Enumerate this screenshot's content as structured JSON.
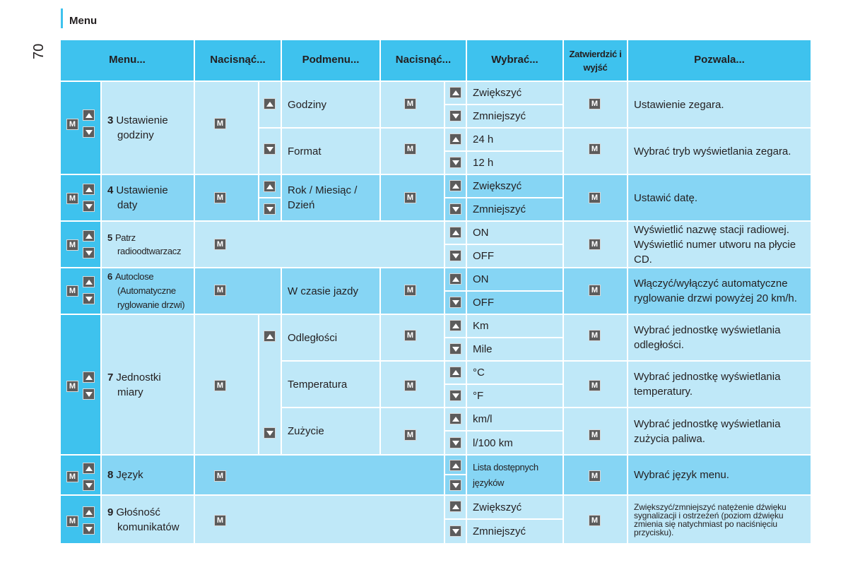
{
  "header": {
    "title": "Menu",
    "page_number": "70"
  },
  "colors": {
    "accent": "#3ec2ee",
    "light": "#bfe8f8",
    "mid": "#86d5f4"
  },
  "key": "M",
  "columns": [
    "Menu...",
    "Nacisnąć...",
    "Podmenu...",
    "Nacisnąć...",
    "Wybrać...",
    "Zatwierdzić i wyjść",
    "Pozwala..."
  ],
  "rows": {
    "r3": {
      "num": "3",
      "menu_l1": "Ustawienie",
      "menu_l2": "godziny",
      "sub1": "Godziny",
      "sub1_opt1": "Zwiększyć",
      "sub1_opt2": "Zmniejszyć",
      "sub1_desc": "Ustawienie zegara.",
      "sub2": "Format",
      "sub2_opt1": "24 h",
      "sub2_opt2": "12 h",
      "sub2_desc": "Wybrać tryb wyświetlania zegara."
    },
    "r4": {
      "num": "4",
      "menu_l1": "Ustawienie",
      "menu_l2": "daty",
      "sub": "Rok / Miesiąc / Dzień",
      "opt1": "Zwiększyć",
      "opt2": "Zmniejszyć",
      "desc": "Ustawić datę."
    },
    "r5": {
      "num": "5",
      "menu_l1": "Patrz",
      "menu_l2": "radioodtwarzacz",
      "opt1": "ON",
      "opt2": "OFF",
      "desc": "Wyświetlić nazwę stacji radiowej. Wyświetlić numer utworu na płycie CD."
    },
    "r6": {
      "num": "6",
      "menu_l1": "Autoclose",
      "menu_l2": "(Automatyczne",
      "menu_l3": "ryglowanie drzwi)",
      "sub": "W czasie jazdy",
      "opt1": "ON",
      "opt2": "OFF",
      "desc": "Włączyć/wyłączyć automatyczne ryglowanie drzwi powyżej 20 km/h."
    },
    "r7": {
      "num": "7",
      "menu_l1": "Jednostki",
      "menu_l2": "miary",
      "sub1": "Odległości",
      "sub1_opt1": "Km",
      "sub1_opt2": "Mile",
      "sub1_desc": "Wybrać jednostkę wyświetlania odległości.",
      "sub2": "Temperatura",
      "sub2_opt1": "°C",
      "sub2_opt2": "°F",
      "sub2_desc": "Wybrać jednostkę wyświetlania temperatury.",
      "sub3": "Zużycie",
      "sub3_opt1": "km/l",
      "sub3_opt2": "l/100 km",
      "sub3_desc": "Wybrać jednostkę wyświetlania zużycia paliwa."
    },
    "r8": {
      "num": "8",
      "menu_l1": "Język",
      "opt": "Lista dostępnych języków",
      "desc": "Wybrać język menu."
    },
    "r9": {
      "num": "9",
      "menu_l1": "Głośność",
      "menu_l2": "komunikatów",
      "opt1": "Zwiększyć",
      "opt2": "Zmniejszyć",
      "desc": "Zwiększyć/zmniejszyć natężenie dźwięku sygnalizacji i ostrzeżeń (poziom dźwięku zmienia się natychmiast po naciśnięciu przycisku)."
    }
  }
}
